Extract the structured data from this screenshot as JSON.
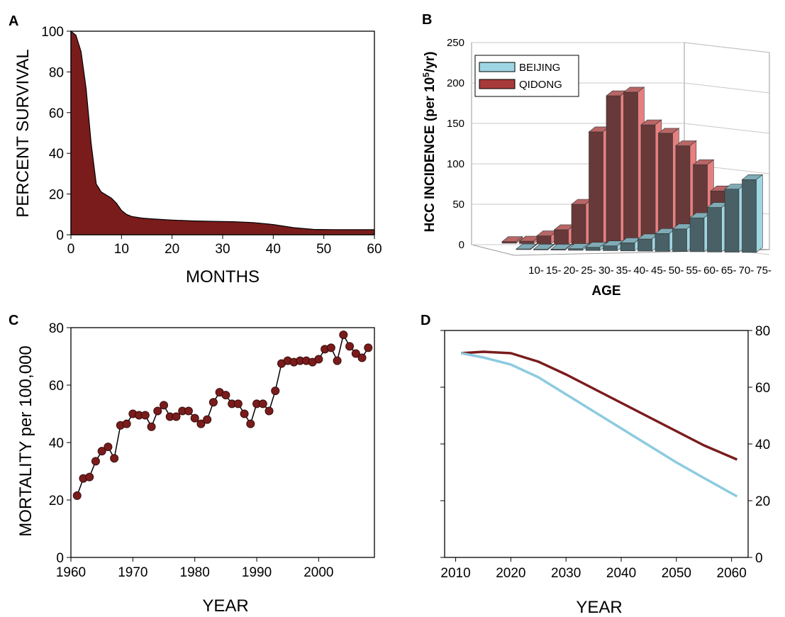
{
  "chart_data": [
    {
      "panel": "A",
      "type": "area",
      "xlabel": "MONTHS",
      "ylabel": "PERCENT SURVIVAL",
      "xlim": [
        0,
        60
      ],
      "ylim": [
        0,
        100
      ],
      "xticks": [
        0,
        10,
        20,
        30,
        40,
        50,
        60
      ],
      "yticks": [
        0,
        20,
        40,
        60,
        80,
        100
      ],
      "color": "#7a1c1c",
      "x": [
        0,
        1,
        2,
        3,
        4,
        5,
        6,
        7,
        8,
        9,
        10,
        11,
        12,
        14,
        16,
        18,
        20,
        24,
        28,
        32,
        36,
        40,
        44,
        48,
        52,
        56,
        60
      ],
      "y": [
        100,
        98,
        90,
        72,
        45,
        25,
        21,
        19.5,
        18,
        15.5,
        12,
        10,
        9,
        8.2,
        7.8,
        7.5,
        7.2,
        6.8,
        6.6,
        6.4,
        6,
        5,
        3.5,
        2.6,
        2.5,
        2.5,
        2.5
      ]
    },
    {
      "panel": "B",
      "type": "bar",
      "xlabel": "AGE",
      "ylabel_pre": "HCC INCIDENCE (per 10",
      "ylabel_sup": "5",
      "ylabel_post": "/yr)",
      "ylim": [
        0,
        250
      ],
      "yticks": [
        0,
        50,
        100,
        150,
        200,
        250
      ],
      "categories": [
        "10-",
        "15-",
        "20-",
        "25-",
        "30-",
        "35-",
        "40-",
        "45-",
        "50-",
        "55-",
        "60-",
        "65-",
        "70-",
        "75-"
      ],
      "legend_position": "top-left",
      "series": [
        {
          "name": "BEIJING",
          "color": "#9fd6e3",
          "values": [
            0,
            0,
            1,
            2,
            4,
            6,
            10,
            15,
            22,
            28,
            42,
            55,
            78,
            90
          ]
        },
        {
          "name": "QIDONG",
          "color": "#e77f7f",
          "values": [
            2,
            3,
            10,
            18,
            50,
            140,
            185,
            190,
            150,
            140,
            125,
            102,
            70,
            0
          ]
        }
      ]
    },
    {
      "panel": "C",
      "type": "line",
      "xlabel": "YEAR",
      "ylabel": "MORTALITY per 100,000",
      "xlim": [
        1960,
        2009
      ],
      "ylim": [
        0,
        80
      ],
      "xticks": [
        1960,
        1970,
        1980,
        1990,
        2000
      ],
      "yticks": [
        0,
        20,
        40,
        60,
        80
      ],
      "color": "#7a1c1c",
      "x": [
        1961,
        1962,
        1963,
        1964,
        1965,
        1966,
        1967,
        1968,
        1969,
        1970,
        1971,
        1972,
        1973,
        1974,
        1975,
        1976,
        1977,
        1978,
        1979,
        1980,
        1981,
        1982,
        1983,
        1984,
        1985,
        1986,
        1987,
        1988,
        1989,
        1990,
        1991,
        1992,
        1993,
        1994,
        1995,
        1996,
        1997,
        1998,
        1999,
        2000,
        2001,
        2002,
        2003,
        2004,
        2005,
        2006,
        2007,
        2008
      ],
      "y": [
        21.5,
        27.5,
        28,
        33.5,
        37,
        38.5,
        34.5,
        46,
        46.5,
        50,
        49.5,
        49.5,
        45.5,
        51,
        53,
        49,
        49,
        51,
        51,
        48.5,
        46.5,
        48,
        54,
        57.5,
        56.5,
        53.5,
        53.5,
        50,
        46.5,
        53.5,
        53.5,
        51,
        58,
        67.5,
        68.5,
        68,
        68.5,
        68.5,
        68,
        69,
        72.5,
        73,
        68.5,
        77.5,
        73.5,
        71,
        69.5,
        73
      ]
    },
    {
      "panel": "D",
      "type": "line",
      "xlabel": "YEAR",
      "xlim": [
        2008,
        2063
      ],
      "ylim": [
        0,
        80
      ],
      "xticks": [
        2010,
        2020,
        2030,
        2040,
        2050,
        2060
      ],
      "yticks": [
        0,
        20,
        40,
        60,
        80
      ],
      "yaxis_side": "right",
      "series": [
        {
          "color": "#7a1c1c",
          "x": [
            2011,
            2015,
            2020,
            2025,
            2030,
            2035,
            2040,
            2045,
            2050,
            2055,
            2061
          ],
          "y": [
            72,
            72.5,
            72,
            69,
            64.5,
            59.5,
            54.5,
            49.5,
            44.5,
            39.5,
            34.5
          ]
        },
        {
          "color": "#8ccbe0",
          "x": [
            2011,
            2015,
            2020,
            2025,
            2030,
            2035,
            2040,
            2045,
            2050,
            2055,
            2061
          ],
          "y": [
            72,
            70.5,
            68,
            63.5,
            57.5,
            51.5,
            45.5,
            39.5,
            33.5,
            28,
            21.5
          ]
        }
      ]
    }
  ]
}
